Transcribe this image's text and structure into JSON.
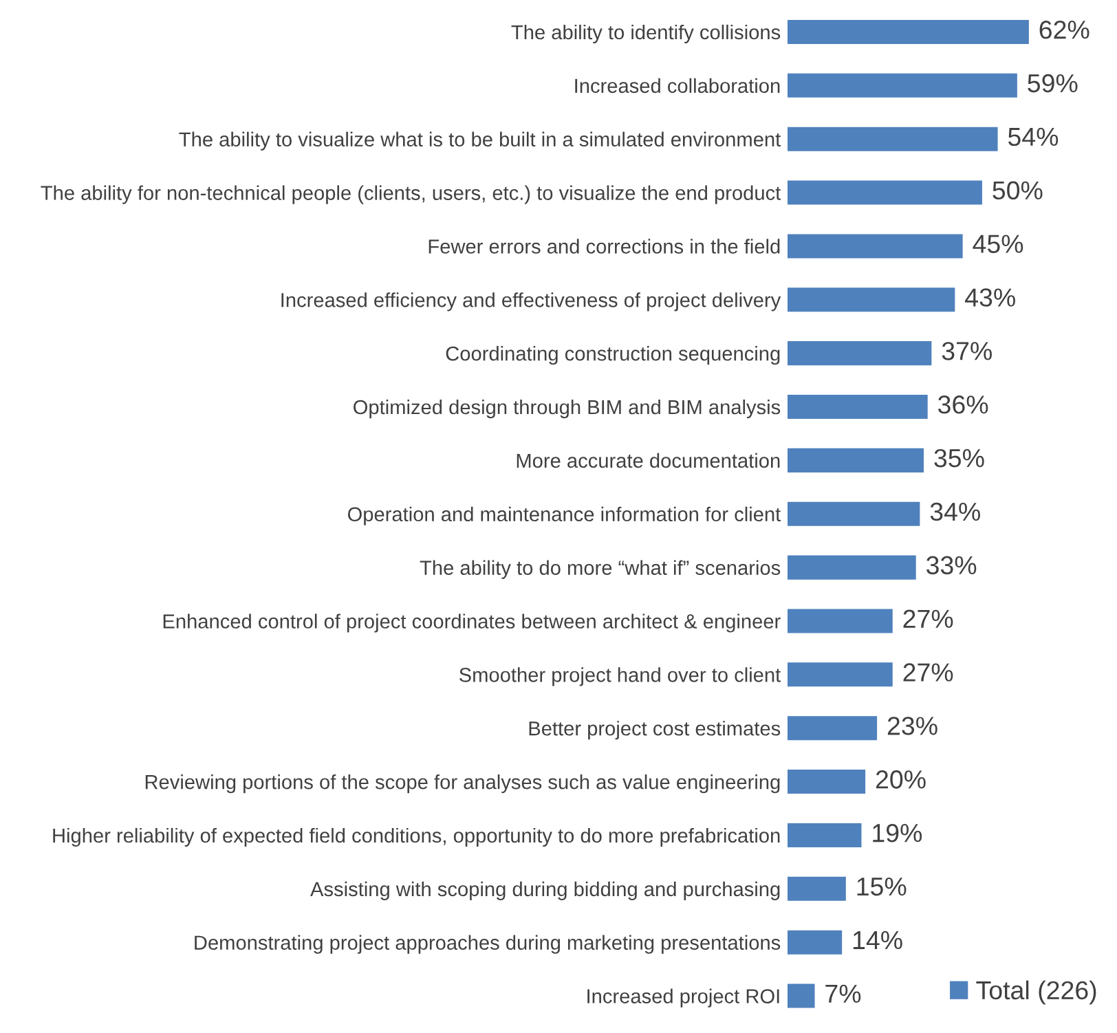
{
  "chart_data": {
    "type": "bar",
    "orientation": "horizontal",
    "categories": [
      "The ability to identify collisions",
      "Increased collaboration",
      "The ability to visualize what is to be built in a simulated environment",
      "The ability for non-technical people (clients, users, etc.) to visualize the end product",
      "Fewer errors and corrections in the field",
      "Increased efficiency and effectiveness of project delivery",
      "Coordinating construction sequencing",
      "Optimized design through BIM and BIM analysis",
      "More accurate documentation",
      "Operation and maintenance information for client",
      "The ability to do more “what if” scenarios",
      "Enhanced control of project coordinates between architect & engineer",
      "Smoother project hand over to client",
      "Better project cost estimates",
      "Reviewing portions of the scope for analyses such as value engineering",
      "Higher reliability of expected field conditions, opportunity to do more prefabrication",
      "Assisting with scoping during bidding and purchasing",
      "Demonstrating project approaches during marketing presentations",
      "Increased project ROI"
    ],
    "series": [
      {
        "name": "Total (226)",
        "color": "#4f81bd",
        "values": [
          62,
          59,
          54,
          50,
          45,
          43,
          37,
          36,
          35,
          34,
          33,
          27,
          27,
          23,
          20,
          19,
          15,
          14,
          7
        ],
        "value_labels": [
          "62%",
          "59%",
          "54%",
          "50%",
          "45%",
          "43%",
          "37%",
          "36%",
          "35%",
          "34%",
          "33%",
          "27%",
          "27%",
          "23%",
          "20%",
          "19%",
          "15%",
          "14%",
          "7%"
        ]
      }
    ],
    "tick_labels": "y",
    "grid": false,
    "legend": "bottom right"
  }
}
